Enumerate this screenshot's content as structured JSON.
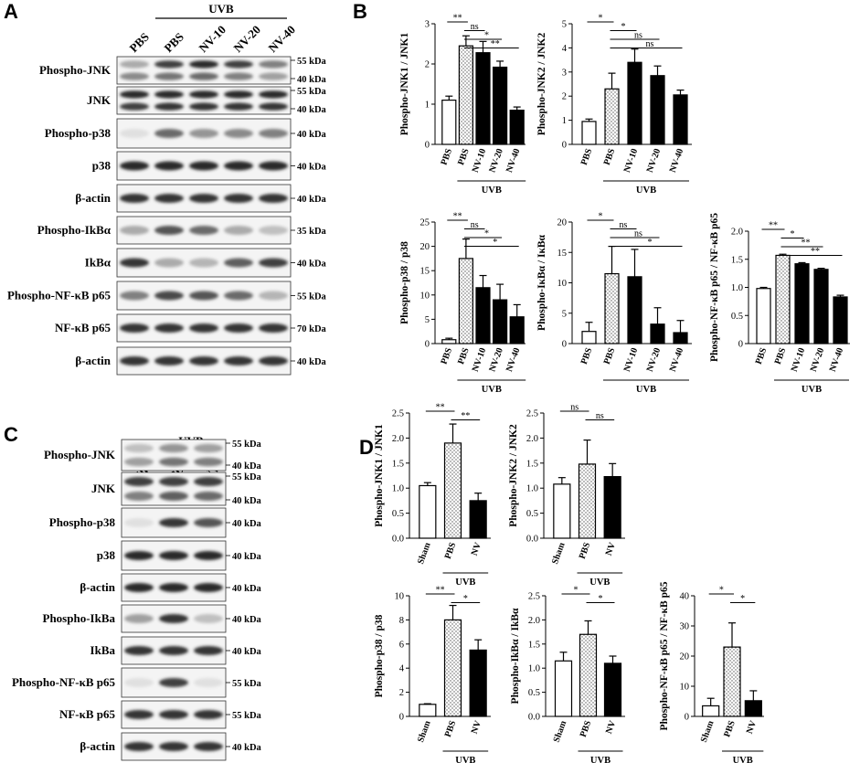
{
  "panels": {
    "a": "A",
    "b": "B",
    "c": "C",
    "d": "D"
  },
  "uvb": "UVB",
  "blotA": {
    "lanes": [
      "PBS",
      "PBS",
      "NV-10",
      "NV-20",
      "NV-40"
    ],
    "rows": [
      {
        "label": "Phospho-JNK",
        "kda": [
          "55 kDa",
          "40 kDa"
        ],
        "bands": [
          [
            0.3,
            0.45
          ],
          [
            0.8,
            0.55
          ],
          [
            0.9,
            0.6
          ],
          [
            0.8,
            0.5
          ],
          [
            0.5,
            0.35
          ]
        ]
      },
      {
        "label": "JNK",
        "kda": [
          "55 kDa",
          "40 kDa"
        ],
        "bands": [
          [
            0.9,
            0.8
          ],
          [
            0.9,
            0.85
          ],
          [
            0.9,
            0.85
          ],
          [
            0.9,
            0.85
          ],
          [
            0.9,
            0.85
          ]
        ]
      },
      {
        "label": "Phospho-p38",
        "kda": [
          "40 kDa"
        ],
        "bands": [
          [
            0.05
          ],
          [
            0.6
          ],
          [
            0.4
          ],
          [
            0.45
          ],
          [
            0.5
          ]
        ]
      },
      {
        "label": "p38",
        "kda": [
          "40 kDa"
        ],
        "bands": [
          [
            0.9
          ],
          [
            0.9
          ],
          [
            0.9
          ],
          [
            0.9
          ],
          [
            0.9
          ]
        ]
      },
      {
        "label": "β-actin",
        "kda": [
          "40 kDa"
        ],
        "bands": [
          [
            0.85
          ],
          [
            0.85
          ],
          [
            0.85
          ],
          [
            0.85
          ],
          [
            0.85
          ]
        ]
      },
      {
        "label": "Phospho-IkBα",
        "kda": [
          "35 kDa"
        ],
        "bands": [
          [
            0.3
          ],
          [
            0.7
          ],
          [
            0.6
          ],
          [
            0.3
          ],
          [
            0.2
          ]
        ]
      },
      {
        "label": "IkBα",
        "kda": [
          "40 kDa"
        ],
        "bands": [
          [
            0.85
          ],
          [
            0.3
          ],
          [
            0.25
          ],
          [
            0.65
          ],
          [
            0.8
          ]
        ]
      },
      {
        "label": "Phospho-NF-κB p65",
        "kda": [
          "55 kDa"
        ],
        "bands": [
          [
            0.5
          ],
          [
            0.75
          ],
          [
            0.7
          ],
          [
            0.6
          ],
          [
            0.25
          ]
        ]
      },
      {
        "label": "NF-κB p65",
        "kda": [
          "70 kDa"
        ],
        "bands": [
          [
            0.85
          ],
          [
            0.85
          ],
          [
            0.85
          ],
          [
            0.85
          ],
          [
            0.85
          ]
        ]
      },
      {
        "label": "β-actin",
        "kda": [
          "40 kDa"
        ],
        "bands": [
          [
            0.85
          ],
          [
            0.85
          ],
          [
            0.85
          ],
          [
            0.85
          ],
          [
            0.85
          ]
        ]
      }
    ]
  },
  "blotC": {
    "lanes": [
      "Sham",
      "PBS",
      "NV"
    ],
    "rows": [
      {
        "label": "Phospho-JNK",
        "kda": [
          "55 kDa",
          "40 kDa"
        ],
        "bands": [
          [
            0.2,
            0.35
          ],
          [
            0.4,
            0.55
          ],
          [
            0.35,
            0.5
          ]
        ]
      },
      {
        "label": "JNK",
        "kda": [
          "55 kDa",
          "40 kDa"
        ],
        "bands": [
          [
            0.8,
            0.5
          ],
          [
            0.8,
            0.65
          ],
          [
            0.8,
            0.6
          ]
        ]
      },
      {
        "label": "Phospho-p38",
        "kda": [
          "40 kDa"
        ],
        "bands": [
          [
            0.05
          ],
          [
            0.85
          ],
          [
            0.7
          ]
        ]
      },
      {
        "label": "p38",
        "kda": [
          "40 kDa"
        ],
        "bands": [
          [
            0.9
          ],
          [
            0.9
          ],
          [
            0.9
          ]
        ]
      },
      {
        "label": "β-actin",
        "kda": [
          "40 kDa"
        ],
        "bands": [
          [
            0.9
          ],
          [
            0.9
          ],
          [
            0.9
          ]
        ]
      },
      {
        "label": "Phospho-IkBa",
        "kda": [
          "40 kDa"
        ],
        "bands": [
          [
            0.35
          ],
          [
            0.85
          ],
          [
            0.2
          ]
        ]
      },
      {
        "label": "IkBa",
        "kda": [
          "40 kDa"
        ],
        "bands": [
          [
            0.85
          ],
          [
            0.85
          ],
          [
            0.85
          ]
        ]
      },
      {
        "label": "Phospho-NF-κB p65",
        "kda": [
          "55 kDa"
        ],
        "bands": [
          [
            0.05
          ],
          [
            0.8
          ],
          [
            0.05
          ]
        ]
      },
      {
        "label": "NF-κB p65",
        "kda": [
          "55 kDa"
        ],
        "bands": [
          [
            0.85
          ],
          [
            0.85
          ],
          [
            0.85
          ]
        ]
      },
      {
        "label": "β-actin",
        "kda": [
          "40 kDa"
        ],
        "bands": [
          [
            0.85
          ],
          [
            0.85
          ],
          [
            0.85
          ]
        ]
      }
    ]
  },
  "chart_data": [
    {
      "panel": "B",
      "type": "bar",
      "ylabel": "Phospho-JNK1 / JNK1",
      "categories": [
        "PBS",
        "PBS",
        "NV-10",
        "NV-20",
        "NV-40"
      ],
      "values": [
        1.1,
        2.45,
        2.28,
        1.92,
        0.85
      ],
      "errors": [
        0.1,
        0.25,
        0.28,
        0.15,
        0.08
      ],
      "ylim": [
        0,
        3
      ],
      "yticks": [
        0,
        1,
        2,
        3
      ],
      "group_label": "UVB",
      "sig": [
        {
          "from": 0,
          "to": 1,
          "text": "**"
        },
        {
          "from": 1,
          "to": 2,
          "text": "ns"
        },
        {
          "from": 1,
          "to": 3,
          "text": "*"
        },
        {
          "from": 1,
          "to": 4,
          "text": "**"
        }
      ]
    },
    {
      "panel": "B",
      "type": "bar",
      "ylabel": "Phospho-JNK2 / JNK2",
      "categories": [
        "PBS",
        "PBS",
        "NV-10",
        "NV-20",
        "NV-40"
      ],
      "values": [
        0.95,
        2.3,
        3.4,
        2.85,
        2.05
      ],
      "errors": [
        0.1,
        0.65,
        0.55,
        0.4,
        0.2
      ],
      "ylim": [
        0,
        5
      ],
      "yticks": [
        0,
        1,
        2,
        3,
        4,
        5
      ],
      "group_label": "UVB",
      "sig": [
        {
          "from": 0,
          "to": 1,
          "text": "*"
        },
        {
          "from": 1,
          "to": 2,
          "text": "*"
        },
        {
          "from": 1,
          "to": 3,
          "text": "ns"
        },
        {
          "from": 1,
          "to": 4,
          "text": "ns"
        }
      ]
    },
    {
      "panel": "B",
      "type": "bar",
      "ylabel": "Phospho-p38 / p38",
      "categories": [
        "PBS",
        "PBS",
        "NV-10",
        "NV-20",
        "NV-40"
      ],
      "values": [
        0.8,
        17.5,
        11.5,
        9.0,
        5.5
      ],
      "errors": [
        0.3,
        4.0,
        2.5,
        3.2,
        2.5
      ],
      "ylim": [
        0,
        25
      ],
      "yticks": [
        0,
        5,
        10,
        15,
        20,
        25
      ],
      "group_label": "UVB",
      "sig": [
        {
          "from": 0,
          "to": 1,
          "text": "**"
        },
        {
          "from": 1,
          "to": 2,
          "text": "ns"
        },
        {
          "from": 1,
          "to": 3,
          "text": "*"
        },
        {
          "from": 1,
          "to": 4,
          "text": "*"
        }
      ]
    },
    {
      "panel": "B",
      "type": "bar",
      "ylabel": "Phospho-IκBα / IκBα",
      "categories": [
        "PBS",
        "PBS",
        "NV-10",
        "NV-20",
        "NV-40"
      ],
      "values": [
        2.0,
        11.5,
        11.0,
        3.2,
        1.8
      ],
      "errors": [
        1.5,
        4.5,
        4.5,
        2.7,
        2.0
      ],
      "ylim": [
        0,
        20
      ],
      "yticks": [
        0,
        5,
        10,
        15,
        20
      ],
      "group_label": "UVB",
      "sig": [
        {
          "from": 0,
          "to": 1,
          "text": "*"
        },
        {
          "from": 1,
          "to": 2,
          "text": "ns"
        },
        {
          "from": 1,
          "to": 3,
          "text": "ns"
        },
        {
          "from": 1,
          "to": 4,
          "text": "*"
        }
      ]
    },
    {
      "panel": "B",
      "type": "bar",
      "ylabel": "Phospho-NF-κB p65 / NF-κB p65",
      "categories": [
        "PBS",
        "PBS",
        "NV-10",
        "NV-20",
        "NV-40"
      ],
      "values": [
        0.98,
        1.57,
        1.42,
        1.32,
        0.83
      ],
      "errors": [
        0.02,
        0.02,
        0.02,
        0.02,
        0.03
      ],
      "ylim": [
        0,
        2
      ],
      "yticks": [
        0,
        0.5,
        1.0,
        1.5,
        2.0
      ],
      "ytick_labels": [
        "0",
        "0.5",
        "1.0",
        "1.5",
        "2.0"
      ],
      "group_label": "UVB",
      "sig": [
        {
          "from": 0,
          "to": 1,
          "text": "**"
        },
        {
          "from": 1,
          "to": 2,
          "text": "*"
        },
        {
          "from": 1,
          "to": 3,
          "text": "**"
        },
        {
          "from": 1,
          "to": 4,
          "text": "**"
        }
      ]
    },
    {
      "panel": "D",
      "type": "bar",
      "ylabel": "Phospho-JNK1 / JNK1",
      "categories": [
        "Sham",
        "PBS",
        "NV"
      ],
      "values": [
        1.05,
        1.9,
        0.75
      ],
      "errors": [
        0.06,
        0.38,
        0.15
      ],
      "ylim": [
        0,
        2.5
      ],
      "yticks": [
        0,
        0.5,
        1.0,
        1.5,
        2.0,
        2.5
      ],
      "ytick_labels": [
        "0.0",
        "0.5",
        "1.0",
        "1.5",
        "2.0",
        "2.5"
      ],
      "group_label": "UVB",
      "sig": [
        {
          "from": 0,
          "to": 1,
          "text": "**"
        },
        {
          "from": 1,
          "to": 2,
          "text": "**"
        }
      ]
    },
    {
      "panel": "D",
      "type": "bar",
      "ylabel": "Phospho-JNK2 / JNK2",
      "categories": [
        "Sham",
        "PBS",
        "NV"
      ],
      "values": [
        1.08,
        1.48,
        1.23
      ],
      "errors": [
        0.13,
        0.48,
        0.26
      ],
      "ylim": [
        0,
        2.5
      ],
      "yticks": [
        0,
        0.5,
        1.0,
        1.5,
        2.0,
        2.5
      ],
      "ytick_labels": [
        "0.0",
        "0.5",
        "1.0",
        "1.5",
        "2.0",
        "2.5"
      ],
      "group_label": "UVB",
      "sig": [
        {
          "from": 0,
          "to": 1,
          "text": "ns"
        },
        {
          "from": 1,
          "to": 2,
          "text": "ns"
        }
      ]
    },
    {
      "panel": "D",
      "type": "bar",
      "ylabel": "Phospho-p38 / p38",
      "categories": [
        "Sham",
        "PBS",
        "NV"
      ],
      "values": [
        1.0,
        8.0,
        5.5
      ],
      "errors": [
        0.05,
        1.2,
        0.85
      ],
      "ylim": [
        0,
        10
      ],
      "yticks": [
        0,
        2,
        4,
        6,
        8,
        10
      ],
      "group_label": "UVB",
      "sig": [
        {
          "from": 0,
          "to": 1,
          "text": "**"
        },
        {
          "from": 1,
          "to": 2,
          "text": "*"
        }
      ]
    },
    {
      "panel": "D",
      "type": "bar",
      "ylabel": "Phospho-IkBα / IkBα",
      "categories": [
        "Sham",
        "PBS",
        "NV"
      ],
      "values": [
        1.15,
        1.7,
        1.1
      ],
      "errors": [
        0.18,
        0.28,
        0.15
      ],
      "ylim": [
        0,
        2.5
      ],
      "yticks": [
        0,
        0.5,
        1.0,
        1.5,
        2.0,
        2.5
      ],
      "ytick_labels": [
        "0.0",
        "0.5",
        "1.0",
        "1.5",
        "2.0",
        "2.5"
      ],
      "group_label": "UVB",
      "sig": [
        {
          "from": 0,
          "to": 1,
          "text": "*"
        },
        {
          "from": 1,
          "to": 2,
          "text": "*"
        }
      ]
    },
    {
      "panel": "D",
      "type": "bar",
      "ylabel": "Phospho-NF-κB p65 / NF-κB p65",
      "categories": [
        "Sham",
        "PBS",
        "NV"
      ],
      "values": [
        3.5,
        23.0,
        5.2
      ],
      "errors": [
        2.5,
        8.0,
        3.3
      ],
      "ylim": [
        0,
        40
      ],
      "yticks": [
        0,
        10,
        20,
        30,
        40
      ],
      "group_label": "UVB",
      "sig": [
        {
          "from": 0,
          "to": 1,
          "text": "*"
        },
        {
          "from": 1,
          "to": 2,
          "text": "*"
        }
      ]
    }
  ]
}
